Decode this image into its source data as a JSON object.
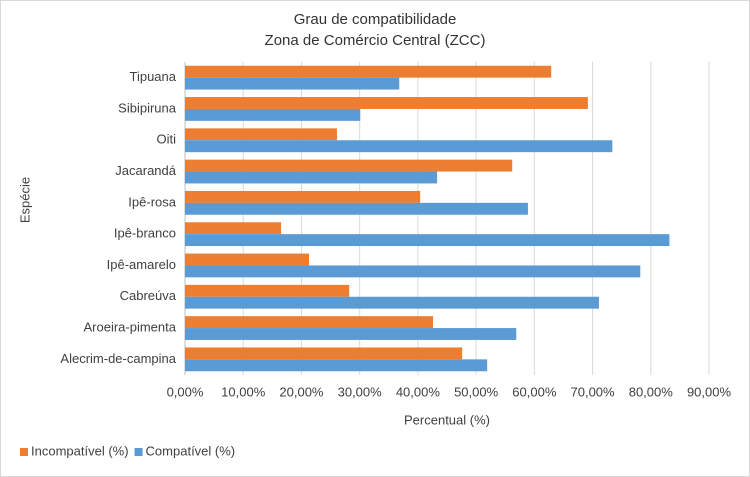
{
  "chart_data": {
    "type": "hbar",
    "title": "Grau de compatibilidade",
    "subtitle": "Zona de Comércio Central (ZCC)",
    "x_label": "Percentual (%)",
    "y_label": "Espécie",
    "categories": [
      "Tipuana",
      "Sibipiruna",
      "Oiti",
      "Jacarandá",
      "Ipê-rosa",
      "Ipê-branco",
      "Ipê-amarelo",
      "Cabreúva",
      "Aroeira-pimenta",
      "Alecrim-de-campina"
    ],
    "series": [
      {
        "name": "Incompatível (%)",
        "color": "#ed7d31",
        "values": [
          62.9,
          69.2,
          26.1,
          56.2,
          40.4,
          16.5,
          21.3,
          28.2,
          42.6,
          47.6
        ]
      },
      {
        "name": "Compatível (%)",
        "color": "#5b9bd5",
        "values": [
          36.8,
          30.1,
          73.4,
          43.3,
          58.9,
          83.2,
          78.2,
          71.1,
          56.9,
          51.9
        ]
      }
    ],
    "xlim": [
      0,
      90
    ],
    "xticks": [
      {
        "value": 0,
        "label": "0,00%"
      },
      {
        "value": 10,
        "label": "10,00%"
      },
      {
        "value": 20,
        "label": "20,00%"
      },
      {
        "value": 30,
        "label": "30,00%"
      },
      {
        "value": 40,
        "label": "40,00%"
      },
      {
        "value": 50,
        "label": "50,00%"
      },
      {
        "value": 60,
        "label": "60,00%"
      },
      {
        "value": 70,
        "label": "70,00%"
      },
      {
        "value": 80,
        "label": "80,00%"
      },
      {
        "value": 90,
        "label": "90,00%"
      }
    ],
    "grid": true,
    "legend": "bottom-left"
  }
}
